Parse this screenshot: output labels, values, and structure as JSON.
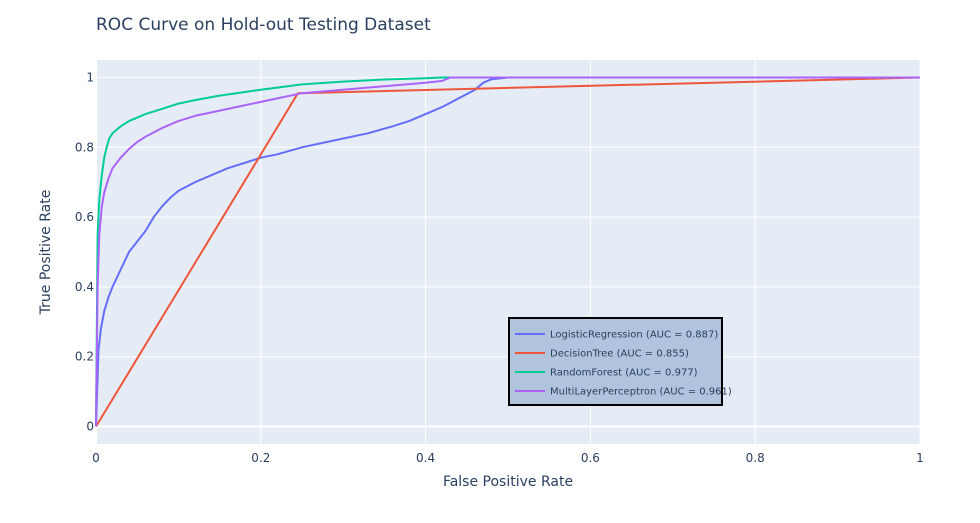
{
  "chart_data": {
    "type": "line",
    "title": "ROC Curve on Hold-out Testing Dataset",
    "xlabel": "False Positive Rate",
    "ylabel": "True Positive Rate",
    "xlim": [
      0,
      1
    ],
    "ylim": [
      -0.05,
      1.05
    ],
    "xticks": [
      0,
      0.2,
      0.4,
      0.6,
      0.8,
      1
    ],
    "xtick_labels": [
      "0",
      "0.2",
      "0.4",
      "0.6",
      "0.8",
      "1"
    ],
    "yticks": [
      0,
      0.2,
      0.4,
      0.6,
      0.8,
      1
    ],
    "ytick_labels": [
      "0",
      "0.2",
      "0.4",
      "0.6",
      "0.8",
      "1"
    ],
    "grid": true,
    "legend_position": "bottom-right",
    "series": [
      {
        "name": "LogisticRegression (AUC = 0.887)",
        "color": "#636efa",
        "x": [
          0,
          0.003,
          0.006,
          0.01,
          0.015,
          0.02,
          0.03,
          0.04,
          0.05,
          0.06,
          0.07,
          0.08,
          0.09,
          0.1,
          0.12,
          0.14,
          0.16,
          0.18,
          0.2,
          0.22,
          0.25,
          0.28,
          0.3,
          0.33,
          0.36,
          0.38,
          0.4,
          0.42,
          0.44,
          0.46,
          0.47,
          0.48,
          0.5,
          0.55,
          0.6,
          0.7,
          0.8,
          0.9,
          1
        ],
        "y": [
          0,
          0.22,
          0.28,
          0.33,
          0.37,
          0.4,
          0.45,
          0.5,
          0.53,
          0.56,
          0.6,
          0.63,
          0.655,
          0.675,
          0.7,
          0.72,
          0.74,
          0.755,
          0.77,
          0.78,
          0.8,
          0.815,
          0.825,
          0.84,
          0.86,
          0.875,
          0.895,
          0.915,
          0.94,
          0.965,
          0.985,
          0.995,
          1,
          1,
          1,
          1,
          1,
          1,
          1
        ]
      },
      {
        "name": "DecisionTree (AUC = 0.855)",
        "color": "#ef553b",
        "x": [
          0,
          0.245,
          1
        ],
        "y": [
          0,
          0.955,
          1
        ]
      },
      {
        "name": "RandomForest (AUC = 0.977)",
        "color": "#00cc96",
        "x": [
          0,
          0.002,
          0.004,
          0.007,
          0.01,
          0.013,
          0.016,
          0.02,
          0.03,
          0.04,
          0.05,
          0.06,
          0.08,
          0.1,
          0.12,
          0.15,
          0.18,
          0.2,
          0.25,
          0.3,
          0.35,
          0.4,
          0.42,
          0.5,
          0.6,
          0.8,
          1
        ],
        "y": [
          0,
          0.55,
          0.65,
          0.72,
          0.77,
          0.8,
          0.825,
          0.84,
          0.86,
          0.875,
          0.885,
          0.895,
          0.91,
          0.925,
          0.935,
          0.948,
          0.958,
          0.965,
          0.98,
          0.988,
          0.994,
          0.998,
          1,
          1,
          1,
          1,
          1
        ]
      },
      {
        "name": "MultiLayerPerceptron (AUC = 0.961)",
        "color": "#ab63fa",
        "x": [
          0,
          0.002,
          0.004,
          0.007,
          0.01,
          0.015,
          0.02,
          0.025,
          0.03,
          0.04,
          0.05,
          0.06,
          0.08,
          0.1,
          0.12,
          0.15,
          0.18,
          0.2,
          0.22,
          0.25,
          0.3,
          0.35,
          0.4,
          0.42,
          0.43,
          0.5,
          0.6,
          0.8,
          1
        ],
        "y": [
          0,
          0.4,
          0.55,
          0.63,
          0.67,
          0.71,
          0.74,
          0.755,
          0.77,
          0.795,
          0.815,
          0.83,
          0.855,
          0.875,
          0.89,
          0.905,
          0.92,
          0.93,
          0.94,
          0.955,
          0.965,
          0.975,
          0.985,
          0.99,
          1,
          1,
          1,
          1,
          1
        ]
      }
    ]
  }
}
